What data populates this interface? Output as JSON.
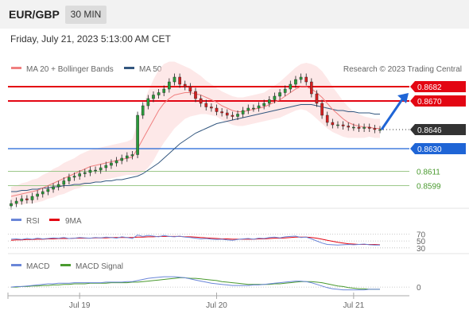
{
  "header": {
    "symbol": "EUR/GBP",
    "timeframe": "30 MIN"
  },
  "timestamp": "Friday, July 21, 2023 5:13:00 AM CET",
  "legend": {
    "ma20": "MA 20 + Bollinger Bands",
    "ma50": "MA 50",
    "credit": "Research © 2023 Trading Central"
  },
  "colors": {
    "red": "#e30613",
    "blue": "#1f65d6",
    "green": "#4a9a2f",
    "dark": "#333333",
    "band": "#fbd5d5",
    "ma50": "#33577f",
    "rsi": "#6a86d8",
    "macd": "#6a86d8",
    "signal": "#4a9a2f"
  },
  "chart_data": [
    {
      "type": "line",
      "title": "",
      "price_range": [
        0.858,
        0.87
      ],
      "x_ticks": [
        "Jul 19",
        "Jul 20",
        "Jul 21"
      ],
      "levels": [
        {
          "value": 0.8682,
          "label": "0.8682",
          "kind": "resistance"
        },
        {
          "value": 0.867,
          "label": "0.8670",
          "kind": "resistance"
        },
        {
          "value": 0.8646,
          "label": "0.8646",
          "kind": "last"
        },
        {
          "value": 0.863,
          "label": "0.8630",
          "kind": "pivot"
        },
        {
          "value": 0.8611,
          "label": "0.8611",
          "kind": "support"
        },
        {
          "value": 0.8599,
          "label": "0.8599",
          "kind": "support"
        }
      ],
      "close": [
        0.8584,
        0.8586,
        0.8588,
        0.8587,
        0.859,
        0.8592,
        0.8594,
        0.8596,
        0.8598,
        0.86,
        0.8603,
        0.8606,
        0.8607,
        0.8609,
        0.861,
        0.8612,
        0.8612,
        0.8614,
        0.8616,
        0.8618,
        0.862,
        0.8622,
        0.8624,
        0.8625,
        0.8658,
        0.8666,
        0.8672,
        0.8675,
        0.8677,
        0.868,
        0.8686,
        0.869,
        0.8684,
        0.8682,
        0.8678,
        0.8672,
        0.8668,
        0.8665,
        0.8664,
        0.8661,
        0.866,
        0.8658,
        0.8657,
        0.8659,
        0.8662,
        0.8664,
        0.8664,
        0.8666,
        0.8668,
        0.8671,
        0.8674,
        0.8677,
        0.868,
        0.8684,
        0.8688,
        0.869,
        0.8686,
        0.8676,
        0.8668,
        0.8658,
        0.8652,
        0.865,
        0.865,
        0.8649,
        0.8648,
        0.8648,
        0.8647,
        0.8648,
        0.8647,
        0.8646,
        0.8646
      ],
      "ma20": [
        0.859,
        0.8591,
        0.8592,
        0.8593,
        0.8594,
        0.8595,
        0.8597,
        0.8599,
        0.8601,
        0.8603,
        0.8605,
        0.8607,
        0.8609,
        0.8611,
        0.8613,
        0.8615,
        0.8616,
        0.8617,
        0.8618,
        0.8619,
        0.862,
        0.8621,
        0.8622,
        0.8623,
        0.863,
        0.8638,
        0.8646,
        0.8654,
        0.8662,
        0.8668,
        0.8672,
        0.8675,
        0.8676,
        0.8677,
        0.8677,
        0.8676,
        0.8675,
        0.8673,
        0.8671,
        0.8669,
        0.8666,
        0.8664,
        0.8662,
        0.8661,
        0.8661,
        0.8662,
        0.8663,
        0.8664,
        0.8665,
        0.8667,
        0.8669,
        0.8671,
        0.8674,
        0.8677,
        0.868,
        0.8682,
        0.8682,
        0.868,
        0.8677,
        0.8673,
        0.8668,
        0.8663,
        0.8659,
        0.8655,
        0.8652,
        0.865,
        0.8649,
        0.8648,
        0.8648,
        0.8647,
        0.8647
      ],
      "ma50": [
        0.8594,
        0.8594,
        0.8595,
        0.8595,
        0.8596,
        0.8596,
        0.8597,
        0.8597,
        0.8598,
        0.8598,
        0.8599,
        0.8599,
        0.86,
        0.86,
        0.8601,
        0.8601,
        0.8602,
        0.8602,
        0.8603,
        0.8603,
        0.8604,
        0.8604,
        0.8605,
        0.8606,
        0.8607,
        0.8609,
        0.8612,
        0.8615,
        0.8618,
        0.8622,
        0.8626,
        0.863,
        0.8634,
        0.8637,
        0.864,
        0.8643,
        0.8645,
        0.8647,
        0.8649,
        0.8651,
        0.8652,
        0.8653,
        0.8654,
        0.8655,
        0.8656,
        0.8657,
        0.8658,
        0.8659,
        0.866,
        0.8661,
        0.8662,
        0.8663,
        0.8664,
        0.8665,
        0.8666,
        0.8667,
        0.8667,
        0.8667,
        0.8666,
        0.8665,
        0.8664,
        0.8663,
        0.8662,
        0.8662,
        0.8661,
        0.8661,
        0.866,
        0.866,
        0.866,
        0.8659,
        0.8659
      ],
      "band_width": [
        0.0008,
        0.0008,
        0.0009,
        0.0009,
        0.001,
        0.001,
        0.0011,
        0.0011,
        0.0012,
        0.0012,
        0.0013,
        0.0013,
        0.0013,
        0.0014,
        0.0014,
        0.0014,
        0.0014,
        0.0014,
        0.0014,
        0.0014,
        0.0014,
        0.0014,
        0.0014,
        0.0015,
        0.0022,
        0.0028,
        0.0032,
        0.0034,
        0.0034,
        0.0033,
        0.0031,
        0.0028,
        0.0025,
        0.0022,
        0.002,
        0.0018,
        0.0016,
        0.0014,
        0.0013,
        0.0012,
        0.0012,
        0.0012,
        0.0012,
        0.0012,
        0.0012,
        0.0012,
        0.0012,
        0.0012,
        0.0012,
        0.0013,
        0.0014,
        0.0015,
        0.0016,
        0.0017,
        0.0018,
        0.0019,
        0.002,
        0.0021,
        0.0022,
        0.0022,
        0.0021,
        0.0019,
        0.0017,
        0.0015,
        0.0013,
        0.0011,
        0.001,
        0.0009,
        0.0008,
        0.0008,
        0.0008
      ],
      "forecast_arrow": [
        0.8646,
        0.867
      ]
    },
    {
      "type": "line",
      "legend": {
        "rsi": "RSI",
        "ma": "9MA"
      },
      "y_ticks": [
        {
          "value": 70,
          "label": "70"
        },
        {
          "value": 50,
          "label": "50"
        },
        {
          "value": 30,
          "label": "30"
        }
      ],
      "range": [
        25,
        80
      ],
      "rsi": [
        55,
        56,
        54,
        57,
        55,
        58,
        56,
        57,
        59,
        58,
        60,
        57,
        58,
        60,
        59,
        58,
        60,
        59,
        61,
        60,
        58,
        62,
        60,
        57,
        67,
        63,
        66,
        64,
        62,
        66,
        63,
        62,
        64,
        61,
        60,
        58,
        56,
        57,
        55,
        54,
        55,
        53,
        52,
        54,
        56,
        57,
        55,
        58,
        57,
        60,
        61,
        59,
        62,
        63,
        64,
        60,
        61,
        56,
        50,
        44,
        40,
        39,
        38,
        39,
        40,
        39,
        40,
        41,
        39,
        38,
        38
      ],
      "ma9": [
        52,
        53,
        53,
        54,
        54,
        55,
        55,
        56,
        56,
        57,
        57,
        57,
        58,
        58,
        58,
        58,
        59,
        59,
        59,
        60,
        60,
        60,
        60,
        60,
        61,
        61,
        62,
        62,
        63,
        63,
        63,
        63,
        63,
        62,
        62,
        61,
        60,
        59,
        58,
        57,
        56,
        56,
        55,
        55,
        55,
        55,
        55,
        56,
        56,
        57,
        58,
        58,
        59,
        60,
        61,
        61,
        61,
        60,
        58,
        55,
        52,
        49,
        46,
        44,
        42,
        41,
        40,
        40,
        40,
        40,
        39
      ]
    },
    {
      "type": "line",
      "legend": {
        "macd": "MACD",
        "signal": "MACD Signal"
      },
      "y_ticks": [
        {
          "value": 0,
          "label": "0"
        }
      ],
      "range": [
        -0.001,
        0.0022
      ],
      "macd": [
        0.0,
        0.0001,
        0.0001,
        0.0002,
        0.0003,
        0.0004,
        0.0005,
        0.0006,
        0.0006,
        0.0007,
        0.0007,
        0.0007,
        0.0008,
        0.0008,
        0.0008,
        0.0008,
        0.0008,
        0.0008,
        0.0009,
        0.0009,
        0.0009,
        0.0009,
        0.001,
        0.001,
        0.0012,
        0.0014,
        0.0016,
        0.0017,
        0.0018,
        0.0019,
        0.0019,
        0.0019,
        0.0018,
        0.0017,
        0.0015,
        0.0013,
        0.0011,
        0.0009,
        0.0007,
        0.0006,
        0.0005,
        0.0004,
        0.0003,
        0.0003,
        0.0003,
        0.0003,
        0.0004,
        0.0004,
        0.0005,
        0.0006,
        0.0007,
        0.0008,
        0.0009,
        0.001,
        0.0011,
        0.0011,
        0.001,
        0.0008,
        0.0005,
        0.0002,
        -0.0001,
        -0.0003,
        -0.0004,
        -0.0005,
        -0.0005,
        -0.0005,
        -0.0005,
        -0.0005,
        -0.0004,
        -0.0004,
        -0.0004
      ],
      "signal": [
        0.0,
        0.0,
        0.0001,
        0.0001,
        0.0002,
        0.0002,
        0.0003,
        0.0003,
        0.0004,
        0.0004,
        0.0005,
        0.0005,
        0.0006,
        0.0006,
        0.0006,
        0.0007,
        0.0007,
        0.0007,
        0.0007,
        0.0008,
        0.0008,
        0.0008,
        0.0008,
        0.0009,
        0.0009,
        0.001,
        0.0011,
        0.0012,
        0.0013,
        0.0014,
        0.0015,
        0.0016,
        0.0017,
        0.0017,
        0.0016,
        0.0016,
        0.0015,
        0.0014,
        0.0013,
        0.0012,
        0.001,
        0.0009,
        0.0008,
        0.0007,
        0.0006,
        0.0005,
        0.0005,
        0.0005,
        0.0005,
        0.0005,
        0.0006,
        0.0006,
        0.0007,
        0.0008,
        0.0009,
        0.001,
        0.001,
        0.001,
        0.0009,
        0.0008,
        0.0006,
        0.0004,
        0.0002,
        0.0001,
        -0.0001,
        -0.0002,
        -0.0003,
        -0.0003,
        -0.0004,
        -0.0004,
        -0.0004
      ]
    }
  ]
}
